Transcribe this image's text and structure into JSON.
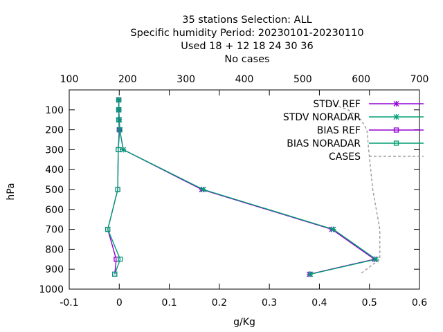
{
  "chart_data": {
    "type": "line",
    "title_lines": [
      "35 stations Selection: ALL",
      "Specific humidity  Period: 20230101-20230110",
      "Used  18 + 12 18 24 30 36",
      "No cases"
    ],
    "xlabel": "g/Kg",
    "ylabel": "hPa",
    "xlim": [
      -0.1,
      0.6
    ],
    "x_ticks": [
      "-0.1",
      "0",
      "0.1",
      "0.2",
      "0.3",
      "0.4",
      "0.5",
      "0.6"
    ],
    "x_tick_values": [
      -0.1,
      0,
      0.1,
      0.2,
      0.3,
      0.4,
      0.5,
      0.6
    ],
    "x2lim": [
      100,
      700
    ],
    "x2_ticks": [
      "100",
      "200",
      "300",
      "400",
      "500",
      "600",
      "700"
    ],
    "x2_tick_values": [
      100,
      200,
      300,
      400,
      500,
      600,
      700
    ],
    "ylim": [
      1000,
      0
    ],
    "y_reversed": true,
    "y_ticks": [
      "100",
      "200",
      "300",
      "400",
      "500",
      "600",
      "700",
      "800",
      "900",
      "1000"
    ],
    "y_tick_values": [
      100,
      200,
      300,
      400,
      500,
      600,
      700,
      800,
      900,
      1000
    ],
    "grid": false,
    "legend_position": "top-right",
    "levels": [
      50,
      100,
      150,
      200,
      300,
      500,
      700,
      850,
      925
    ],
    "series": [
      {
        "name": "STDV REF",
        "color": "#9400d3",
        "marker": "x",
        "axis": "x",
        "x": [
          -0.001,
          -0.001,
          0.0,
          0.001,
          0.008,
          0.165,
          0.425,
          0.51,
          0.38
        ]
      },
      {
        "name": "STDV NORADAR",
        "color": "#009e73",
        "marker": "x",
        "axis": "x",
        "x": [
          -0.001,
          -0.001,
          0.0,
          0.001,
          0.008,
          0.168,
          0.428,
          0.513,
          0.382
        ]
      },
      {
        "name": "BIAS REF",
        "color": "#9400d3",
        "marker": "square",
        "axis": "x",
        "x": [
          -0.001,
          -0.001,
          -0.001,
          0.0,
          -0.002,
          -0.003,
          -0.023,
          -0.006,
          -0.009
        ]
      },
      {
        "name": "BIAS NORADAR",
        "color": "#009e73",
        "marker": "square",
        "axis": "x",
        "x": [
          -0.001,
          -0.001,
          -0.001,
          0.001,
          -0.002,
          -0.003,
          -0.023,
          0.002,
          -0.009
        ]
      },
      {
        "name": "CASES",
        "color": "#a0a0a0",
        "marker": "none",
        "dashed": true,
        "axis": "x2",
        "x": [
          530,
          578,
          600,
          610,
          613,
          620,
          632,
          632,
          598
        ]
      }
    ]
  }
}
